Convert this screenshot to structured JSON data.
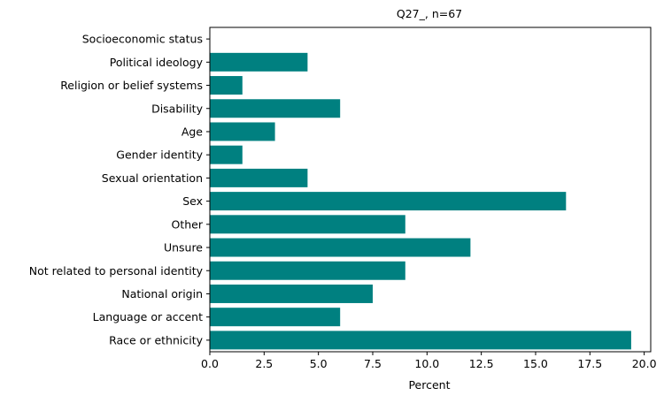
{
  "chart_data": {
    "type": "bar",
    "orientation": "horizontal",
    "title": "Q27_, n=67",
    "xlabel": "Percent",
    "ylabel": "",
    "xlim": [
      0,
      20.3
    ],
    "xticks": [
      0,
      2.5,
      5,
      7.5,
      10,
      12.5,
      15,
      17.5,
      20
    ],
    "xtick_labels": [
      "0.0",
      "2.5",
      "5.0",
      "7.5",
      "10.0",
      "12.5",
      "15.0",
      "17.5",
      "20.0"
    ],
    "grid": false,
    "bar_color": "#008080",
    "categories": [
      "Race or ethnicity",
      "Language or accent",
      "National origin",
      "Not related to personal identity",
      "Unsure",
      "Other",
      "Sex",
      "Sexual orientation",
      "Gender identity",
      "Age",
      "Disability",
      "Religion or belief systems",
      "Political ideology",
      "Socioeconomic status"
    ],
    "values": [
      19.4,
      6.0,
      7.5,
      9.0,
      12.0,
      9.0,
      16.4,
      4.5,
      1.5,
      3.0,
      6.0,
      1.5,
      4.5,
      0
    ]
  }
}
